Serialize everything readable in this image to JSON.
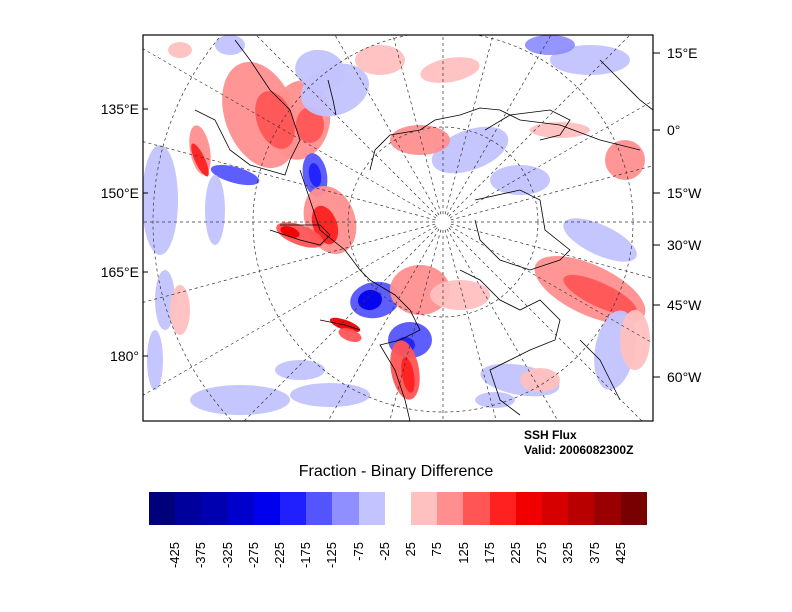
{
  "plot": {
    "title_line1": "SSH Flux",
    "title_line2": "Valid: 2006082300Z",
    "left_lon_labels": [
      "135°E",
      "150°E",
      "165°E",
      "180°"
    ],
    "right_lon_labels": [
      "15°E",
      "0°",
      "15°W",
      "30°W",
      "45°W",
      "60°W"
    ]
  },
  "colorbar": {
    "title": "Fraction - Binary Difference",
    "tick_labels": [
      "-425",
      "-375",
      "-325",
      "-275",
      "-225",
      "-175",
      "-125",
      "-75",
      "-25",
      "25",
      "75",
      "125",
      "175",
      "225",
      "275",
      "325",
      "375",
      "425"
    ],
    "colors": [
      "#00007a",
      "#00009c",
      "#0000b0",
      "#0000cc",
      "#0000ee",
      "#2020ff",
      "#5555ff",
      "#8f8fff",
      "#c3c3ff",
      "#ffffff",
      "#ffc0c0",
      "#ff8f8f",
      "#ff5555",
      "#ff2020",
      "#f00000",
      "#d60000",
      "#b80000",
      "#9a0000",
      "#780000"
    ]
  }
}
